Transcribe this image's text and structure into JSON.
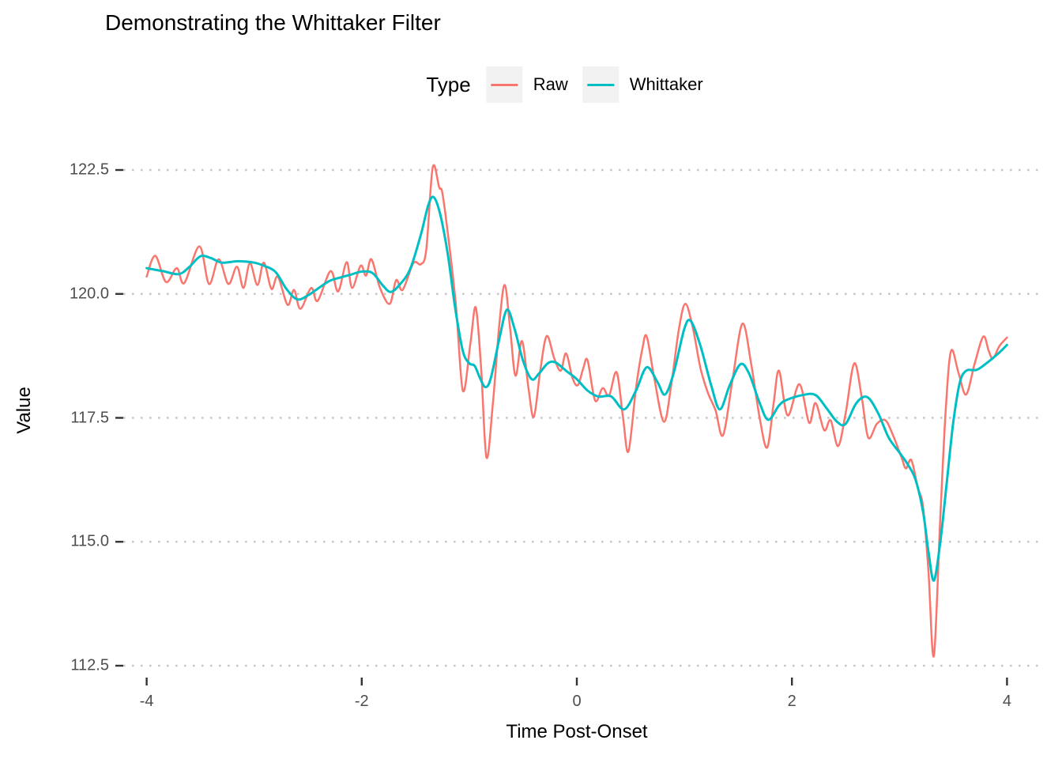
{
  "title": "Demonstrating the Whittaker Filter",
  "legend": {
    "title": "Type"
  },
  "colors": {
    "grid": "#C7C7C7",
    "tick_mark": "#333333",
    "tick_label": "#4D4D4D",
    "key_background": "#F2F2F2",
    "raw": "#F8766D",
    "whittaker": "#00BFC4"
  },
  "chart_data": {
    "type": "line",
    "title": "Demonstrating the Whittaker Filter",
    "xlabel": "Time Post-Onset",
    "ylabel": "Value",
    "xlim": [
      -4.25,
      4.35
    ],
    "ylim": [
      112.3,
      123.4
    ],
    "x_ticks": [
      -4,
      -2,
      0,
      2,
      4
    ],
    "x_tick_labels": [
      "-4",
      "-2",
      "0",
      "2",
      "4"
    ],
    "y_ticks": [
      122.5,
      120.0,
      117.5,
      115.0,
      112.5
    ],
    "y_tick_labels": [
      "122.5",
      "120.0",
      "117.5",
      "115.0",
      "112.5"
    ],
    "grid": "horizontal-dotted-major-only",
    "legend_title": "Type",
    "legend_position": "top-center",
    "series": [
      {
        "name": "Raw",
        "color": "#F8766D",
        "stroke_width": 2.5,
        "points": [
          [
            -4.0,
            120.35
          ],
          [
            -3.92,
            120.77
          ],
          [
            -3.82,
            120.24
          ],
          [
            -3.72,
            120.52
          ],
          [
            -3.65,
            120.22
          ],
          [
            -3.51,
            120.96
          ],
          [
            -3.42,
            120.2
          ],
          [
            -3.33,
            120.7
          ],
          [
            -3.24,
            120.2
          ],
          [
            -3.16,
            120.55
          ],
          [
            -3.1,
            120.12
          ],
          [
            -3.04,
            120.62
          ],
          [
            -2.97,
            120.18
          ],
          [
            -2.91,
            120.63
          ],
          [
            -2.84,
            120.1
          ],
          [
            -2.78,
            120.35
          ],
          [
            -2.69,
            119.78
          ],
          [
            -2.63,
            120.08
          ],
          [
            -2.57,
            119.7
          ],
          [
            -2.47,
            120.12
          ],
          [
            -2.41,
            119.86
          ],
          [
            -2.29,
            120.46
          ],
          [
            -2.22,
            120.05
          ],
          [
            -2.14,
            120.64
          ],
          [
            -2.09,
            120.12
          ],
          [
            -2.01,
            120.57
          ],
          [
            -1.96,
            120.37
          ],
          [
            -1.91,
            120.7
          ],
          [
            -1.83,
            120.12
          ],
          [
            -1.74,
            119.8
          ],
          [
            -1.68,
            120.28
          ],
          [
            -1.62,
            120.08
          ],
          [
            -1.52,
            120.62
          ],
          [
            -1.45,
            120.6
          ],
          [
            -1.4,
            120.9
          ],
          [
            -1.34,
            122.55
          ],
          [
            -1.28,
            122.15
          ],
          [
            -1.24,
            121.9
          ],
          [
            -1.13,
            119.9
          ],
          [
            -1.06,
            118.05
          ],
          [
            -0.99,
            119.0
          ],
          [
            -0.94,
            119.73
          ],
          [
            -0.89,
            118.5
          ],
          [
            -0.84,
            116.7
          ],
          [
            -0.78,
            117.8
          ],
          [
            -0.72,
            119.4
          ],
          [
            -0.67,
            120.18
          ],
          [
            -0.62,
            119.3
          ],
          [
            -0.57,
            118.35
          ],
          [
            -0.51,
            119.05
          ],
          [
            -0.45,
            118.1
          ],
          [
            -0.4,
            117.52
          ],
          [
            -0.34,
            118.45
          ],
          [
            -0.28,
            119.15
          ],
          [
            -0.21,
            118.7
          ],
          [
            -0.15,
            118.45
          ],
          [
            -0.1,
            118.8
          ],
          [
            -0.04,
            118.3
          ],
          [
            0.01,
            118.16
          ],
          [
            0.06,
            118.5
          ],
          [
            0.1,
            118.66
          ],
          [
            0.17,
            117.85
          ],
          [
            0.24,
            118.1
          ],
          [
            0.3,
            117.95
          ],
          [
            0.37,
            118.42
          ],
          [
            0.43,
            117.5
          ],
          [
            0.48,
            116.82
          ],
          [
            0.55,
            118.1
          ],
          [
            0.61,
            118.9
          ],
          [
            0.65,
            119.14
          ],
          [
            0.72,
            118.3
          ],
          [
            0.81,
            117.42
          ],
          [
            0.88,
            118.2
          ],
          [
            0.95,
            119.3
          ],
          [
            1.01,
            119.8
          ],
          [
            1.08,
            119.3
          ],
          [
            1.15,
            118.5
          ],
          [
            1.22,
            118.0
          ],
          [
            1.29,
            117.65
          ],
          [
            1.36,
            117.15
          ],
          [
            1.45,
            118.3
          ],
          [
            1.54,
            119.4
          ],
          [
            1.62,
            118.6
          ],
          [
            1.7,
            117.5
          ],
          [
            1.77,
            116.9
          ],
          [
            1.83,
            117.8
          ],
          [
            1.88,
            118.45
          ],
          [
            1.96,
            117.55
          ],
          [
            2.07,
            118.18
          ],
          [
            2.16,
            117.4
          ],
          [
            2.22,
            117.8
          ],
          [
            2.3,
            117.25
          ],
          [
            2.36,
            117.45
          ],
          [
            2.43,
            116.93
          ],
          [
            2.5,
            117.6
          ],
          [
            2.58,
            118.6
          ],
          [
            2.65,
            117.9
          ],
          [
            2.71,
            117.1
          ],
          [
            2.79,
            117.38
          ],
          [
            2.87,
            117.45
          ],
          [
            2.94,
            117.15
          ],
          [
            3.02,
            116.7
          ],
          [
            3.06,
            116.48
          ],
          [
            3.11,
            116.65
          ],
          [
            3.17,
            116.1
          ],
          [
            3.22,
            115.7
          ],
          [
            3.27,
            114.4
          ],
          [
            3.32,
            112.7
          ],
          [
            3.38,
            115.5
          ],
          [
            3.43,
            117.65
          ],
          [
            3.48,
            118.85
          ],
          [
            3.55,
            118.4
          ],
          [
            3.62,
            117.97
          ],
          [
            3.7,
            118.6
          ],
          [
            3.78,
            119.14
          ],
          [
            3.83,
            118.85
          ],
          [
            3.87,
            118.7
          ],
          [
            3.93,
            118.95
          ],
          [
            4.0,
            119.12
          ]
        ]
      },
      {
        "name": "Whittaker",
        "color": "#00BFC4",
        "stroke_width": 3,
        "points": [
          [
            -4.0,
            120.52
          ],
          [
            -3.85,
            120.46
          ],
          [
            -3.7,
            120.4
          ],
          [
            -3.6,
            120.55
          ],
          [
            -3.5,
            120.76
          ],
          [
            -3.4,
            120.72
          ],
          [
            -3.3,
            120.63
          ],
          [
            -3.15,
            120.66
          ],
          [
            -3.0,
            120.63
          ],
          [
            -2.9,
            120.56
          ],
          [
            -2.8,
            120.44
          ],
          [
            -2.7,
            120.1
          ],
          [
            -2.6,
            119.89
          ],
          [
            -2.5,
            119.97
          ],
          [
            -2.4,
            120.12
          ],
          [
            -2.3,
            120.26
          ],
          [
            -2.2,
            120.33
          ],
          [
            -2.1,
            120.39
          ],
          [
            -2.0,
            120.45
          ],
          [
            -1.9,
            120.42
          ],
          [
            -1.8,
            120.16
          ],
          [
            -1.73,
            120.04
          ],
          [
            -1.65,
            120.18
          ],
          [
            -1.55,
            120.5
          ],
          [
            -1.45,
            121.2
          ],
          [
            -1.38,
            121.8
          ],
          [
            -1.33,
            121.95
          ],
          [
            -1.27,
            121.6
          ],
          [
            -1.2,
            120.8
          ],
          [
            -1.13,
            119.7
          ],
          [
            -1.06,
            118.85
          ],
          [
            -1.0,
            118.6
          ],
          [
            -0.95,
            118.55
          ],
          [
            -0.9,
            118.3
          ],
          [
            -0.85,
            118.12
          ],
          [
            -0.8,
            118.3
          ],
          [
            -0.72,
            119.1
          ],
          [
            -0.65,
            119.68
          ],
          [
            -0.58,
            119.3
          ],
          [
            -0.5,
            118.65
          ],
          [
            -0.42,
            118.28
          ],
          [
            -0.35,
            118.4
          ],
          [
            -0.27,
            118.6
          ],
          [
            -0.2,
            118.62
          ],
          [
            -0.1,
            118.45
          ],
          [
            0.0,
            118.28
          ],
          [
            0.1,
            118.05
          ],
          [
            0.2,
            117.93
          ],
          [
            0.32,
            117.93
          ],
          [
            0.44,
            117.67
          ],
          [
            0.55,
            118.05
          ],
          [
            0.65,
            118.52
          ],
          [
            0.75,
            118.22
          ],
          [
            0.82,
            117.97
          ],
          [
            0.9,
            118.4
          ],
          [
            1.0,
            119.3
          ],
          [
            1.06,
            119.45
          ],
          [
            1.15,
            118.95
          ],
          [
            1.25,
            118.15
          ],
          [
            1.33,
            117.67
          ],
          [
            1.42,
            118.15
          ],
          [
            1.52,
            118.58
          ],
          [
            1.6,
            118.4
          ],
          [
            1.7,
            117.8
          ],
          [
            1.78,
            117.46
          ],
          [
            1.88,
            117.75
          ],
          [
            1.95,
            117.86
          ],
          [
            2.1,
            117.96
          ],
          [
            2.22,
            117.96
          ],
          [
            2.32,
            117.7
          ],
          [
            2.42,
            117.42
          ],
          [
            2.5,
            117.38
          ],
          [
            2.6,
            117.8
          ],
          [
            2.7,
            117.92
          ],
          [
            2.8,
            117.6
          ],
          [
            2.9,
            117.1
          ],
          [
            3.0,
            116.8
          ],
          [
            3.08,
            116.55
          ],
          [
            3.15,
            116.25
          ],
          [
            3.22,
            115.6
          ],
          [
            3.27,
            114.8
          ],
          [
            3.32,
            114.22
          ],
          [
            3.38,
            115.0
          ],
          [
            3.44,
            116.2
          ],
          [
            3.5,
            117.4
          ],
          [
            3.56,
            118.2
          ],
          [
            3.62,
            118.45
          ],
          [
            3.72,
            118.47
          ],
          [
            3.82,
            118.62
          ],
          [
            3.92,
            118.8
          ],
          [
            4.0,
            118.97
          ]
        ]
      }
    ]
  }
}
